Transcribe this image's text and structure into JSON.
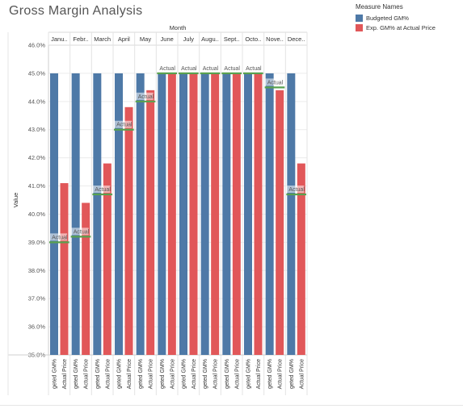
{
  "title": "Gross Margin Analysis",
  "legend": {
    "title": "Measure Names",
    "items": [
      {
        "label": "Budgeted GM%",
        "color": "#4e79a7"
      },
      {
        "label": "Exp. GM% at Actual Price",
        "color": "#e15759"
      }
    ]
  },
  "chart_data": {
    "type": "bar",
    "column_header": "Month",
    "ylabel": "Value",
    "categories": [
      "Janu..",
      "Febr..",
      "March",
      "April",
      "May",
      "June",
      "July",
      "Augu..",
      "Sept..",
      "Octo..",
      "Nove..",
      "Dece.."
    ],
    "ylim": [
      35.0,
      46.0
    ],
    "yticks": [
      "46.0%",
      "45.0%",
      "44.0%",
      "43.0%",
      "42.0%",
      "41.0%",
      "40.0%",
      "39.0%",
      "38.0%",
      "37.0%",
      "36.0%",
      "35.0%"
    ],
    "ytick_values": [
      46,
      45,
      44,
      43,
      42,
      41,
      40,
      39,
      38,
      37,
      36,
      35
    ],
    "series": [
      {
        "name": "Budgeted GM%",
        "color": "#4e79a7",
        "xlabel": "geted GM%",
        "values": [
          45.0,
          45.0,
          45.0,
          45.0,
          45.0,
          45.0,
          45.0,
          45.0,
          45.0,
          45.0,
          45.0,
          45.0
        ]
      },
      {
        "name": "Exp. GM% at Actual Price",
        "color": "#e15759",
        "xlabel": "Actual Price",
        "values": [
          41.1,
          40.4,
          41.8,
          43.8,
          44.4,
          45.0,
          45.0,
          45.0,
          45.0,
          45.0,
          44.4,
          41.8
        ]
      }
    ],
    "reference_lines": {
      "label": "Actual",
      "color": "#59a14f",
      "values": [
        39.0,
        39.2,
        40.7,
        43.0,
        44.0,
        45.0,
        45.0,
        45.0,
        45.0,
        45.0,
        44.5,
        40.7
      ]
    },
    "grid": true
  }
}
